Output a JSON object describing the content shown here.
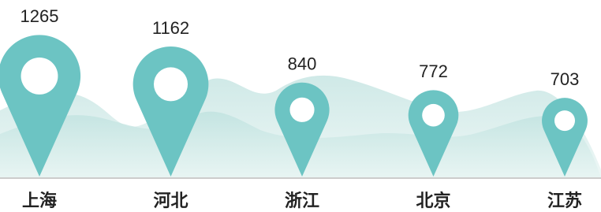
{
  "chart_data": {
    "type": "pin",
    "categories": [
      "上海",
      "河北",
      "浙江",
      "北京",
      "江苏"
    ],
    "values": [
      1265,
      1162,
      840,
      772,
      703
    ],
    "color": "#6cc4c3"
  }
}
